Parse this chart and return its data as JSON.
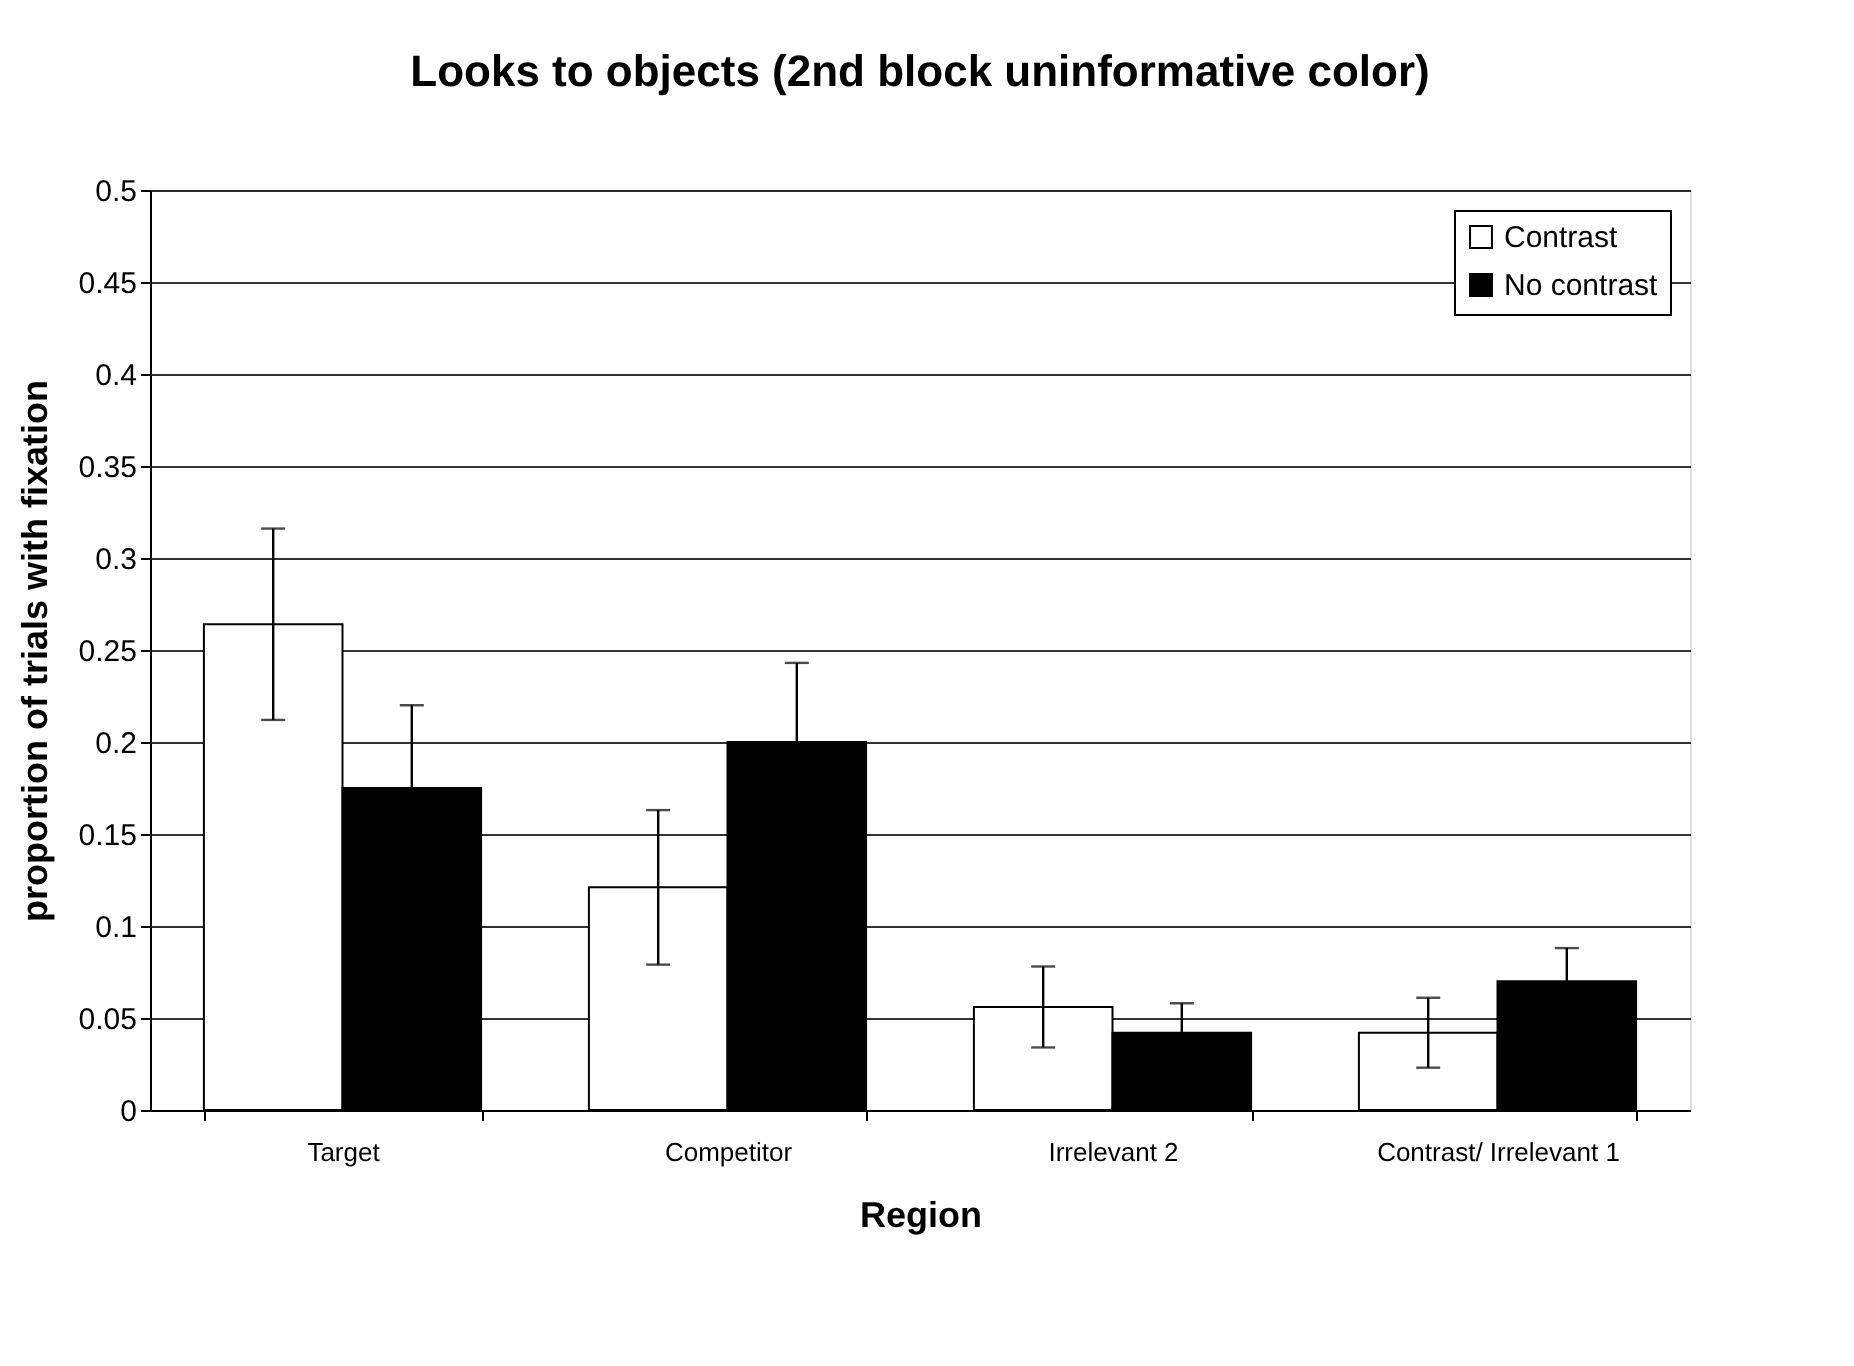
{
  "chart_data": {
    "type": "bar",
    "title": "Looks to objects (2nd block uninformative color)",
    "xlabel": "Region",
    "ylabel": "proportion of trials with fixation",
    "categories": [
      "Target",
      "Competitor",
      "Irrelevant 2",
      "Contrast/ Irrelevant 1"
    ],
    "series": [
      {
        "name": "Contrast",
        "color": "#ffffff",
        "values": [
          0.264,
          0.121,
          0.056,
          0.042
        ],
        "errors": [
          0.052,
          0.042,
          0.022,
          0.019
        ]
      },
      {
        "name": "No contrast",
        "color": "#000000",
        "values": [
          0.175,
          0.2,
          0.042,
          0.07
        ],
        "errors": [
          0.045,
          0.043,
          0.016,
          0.018
        ]
      }
    ],
    "ylim": [
      0,
      0.5
    ],
    "yticks": [
      0,
      0.05,
      0.1,
      0.15,
      0.2,
      0.25,
      0.3,
      0.35,
      0.4,
      0.45,
      0.5
    ],
    "grid": "y",
    "legend": "top right"
  }
}
